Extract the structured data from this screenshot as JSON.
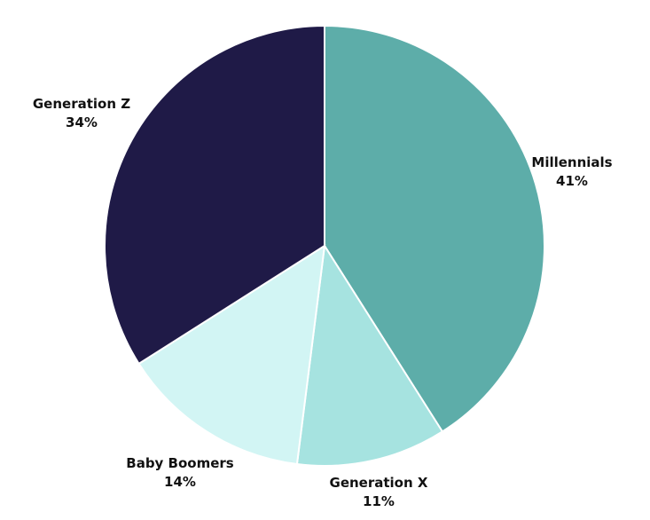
{
  "chart_data": {
    "type": "pie",
    "start_angle_deg": 0,
    "direction": "clockwise",
    "slices": [
      {
        "label": "Millennials",
        "percent_label": "41%",
        "value": 41,
        "color": "#5DADA9"
      },
      {
        "label": "Generation X",
        "percent_label": "11%",
        "value": 11,
        "color": "#A6E3E0"
      },
      {
        "label": "Baby Boomers",
        "percent_label": "14%",
        "value": 14,
        "color": "#D2F5F4"
      },
      {
        "label": "Generation Z",
        "percent_label": "34%",
        "value": 34,
        "color": "#1F1A47"
      }
    ]
  }
}
